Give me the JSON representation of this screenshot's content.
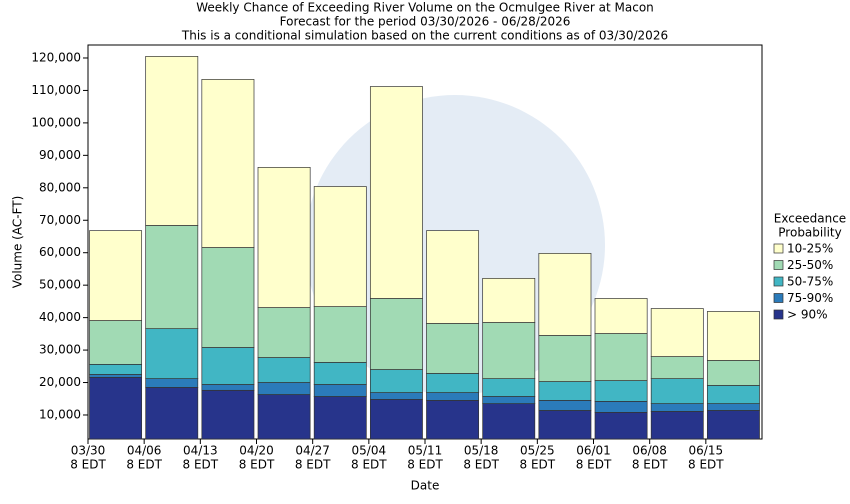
{
  "chart_data": {
    "type": "stacked_bar",
    "title": [
      "Weekly Chance of Exceeding River Volume on the Ocmulgee River at Macon",
      "Forecast for the period 03/30/2026 - 06/28/2026",
      "This is a conditional simulation based on the current conditions as of 03/30/2026"
    ],
    "x_label": "Date",
    "y_label": "Volume (AC-FT)",
    "legend_title": [
      "Exceedance",
      "Probability"
    ],
    "categories": [
      [
        "03/30",
        "8 EDT"
      ],
      [
        "04/06",
        "8 EDT"
      ],
      [
        "04/13",
        "8 EDT"
      ],
      [
        "04/20",
        "8 EDT"
      ],
      [
        "04/27",
        "8 EDT"
      ],
      [
        "05/04",
        "8 EDT"
      ],
      [
        "05/11",
        "8 EDT"
      ],
      [
        "05/18",
        "8 EDT"
      ],
      [
        "05/25",
        "8 EDT"
      ],
      [
        "06/01",
        "8 EDT"
      ],
      [
        "06/08",
        "8 EDT"
      ],
      [
        "06/15",
        "8 EDT"
      ]
    ],
    "series": [
      {
        "name": "> 90%",
        "color": "#27348b",
        "values": [
          19000,
          15900,
          15000,
          13700,
          13100,
          12200,
          11900,
          10900,
          8800,
          8200,
          8500,
          8800
        ]
      },
      {
        "name": "75-90%",
        "color": "#2b7bba",
        "values": [
          900,
          2700,
          1800,
          3700,
          3700,
          2100,
          2400,
          2200,
          3100,
          3400,
          2400,
          2100
        ]
      },
      {
        "name": "50-75%",
        "color": "#41b6c4",
        "values": [
          3100,
          15400,
          11400,
          7700,
          6800,
          7100,
          5900,
          5500,
          5800,
          6400,
          7700,
          5600
        ]
      },
      {
        "name": "25-50%",
        "color": "#a1dab4",
        "values": [
          13500,
          31800,
          30800,
          15400,
          17200,
          21900,
          15400,
          17300,
          14200,
          14500,
          6800,
          7700
        ]
      },
      {
        "name": "10-25%",
        "color": "#ffffcc",
        "values": [
          27700,
          52100,
          51800,
          43200,
          37000,
          65300,
          28600,
          13600,
          25300,
          10800,
          14800,
          15100
        ]
      }
    ],
    "ylim": [
      2600,
      124000
    ],
    "yticks": [
      {
        "value": 10000,
        "label": "10,000"
      },
      {
        "value": 20000,
        "label": "20,000"
      },
      {
        "value": 30000,
        "label": "30,000"
      },
      {
        "value": 40000,
        "label": "40,000"
      },
      {
        "value": 50000,
        "label": "50,000"
      },
      {
        "value": 60000,
        "label": "60,000"
      },
      {
        "value": 70000,
        "label": "70,000"
      },
      {
        "value": 80000,
        "label": "80,000"
      },
      {
        "value": 90000,
        "label": "90,000"
      },
      {
        "value": 100000,
        "label": "100,000"
      },
      {
        "value": 110000,
        "label": "110,000"
      },
      {
        "value": 120000,
        "label": "120,000"
      }
    ]
  }
}
